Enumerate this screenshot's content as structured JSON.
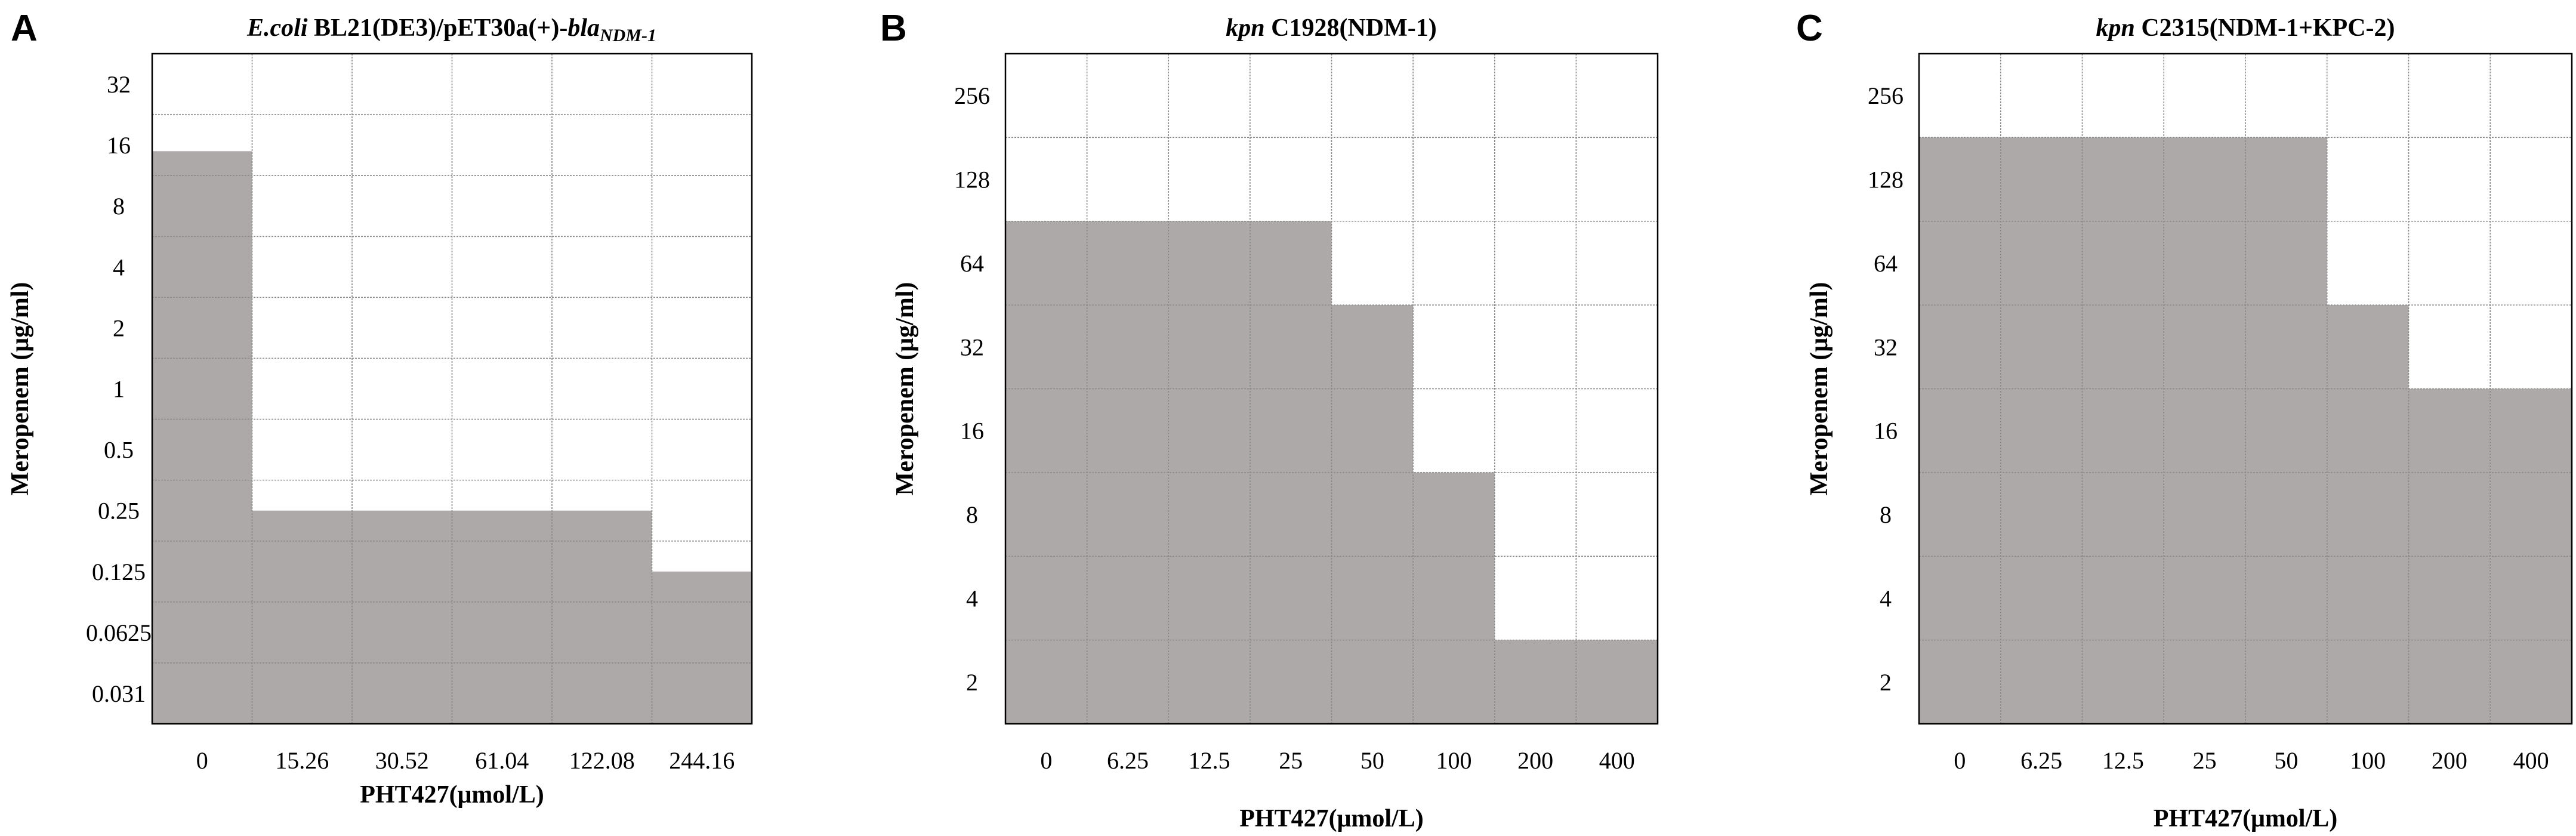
{
  "chart_data": [
    {
      "type": "heatmap",
      "panel": "A",
      "title_parts": [
        {
          "text": "E.coli",
          "style": "italic"
        },
        {
          "text": " BL21(DE3)/pET30a(+)-",
          "style": "normal"
        },
        {
          "text": "bla",
          "style": "italic"
        },
        {
          "text": "NDM-1",
          "style": "sub"
        }
      ],
      "xlabel": "PHT427(μmol/L)",
      "ylabel": "Meropenem (μg/ml)",
      "x_categories": [
        "0",
        "15.26",
        "30.52",
        "61.04",
        "122.08",
        "244.16"
      ],
      "y_categories": [
        "0.031",
        "0.0625",
        "0.125",
        "0.25",
        "0.5",
        "1",
        "2",
        "4",
        "8",
        "16",
        "32"
      ],
      "shaded_rows_per_column": [
        9.4,
        3.5,
        3.5,
        3.5,
        3.5,
        2.5
      ],
      "values_meaning": "number of meropenem rows (from bottom) showing growth (shaded)"
    },
    {
      "type": "heatmap",
      "panel": "B",
      "title_parts": [
        {
          "text": "kpn",
          "style": "italic"
        },
        {
          "text": " C1928(NDM-1)",
          "style": "normal"
        }
      ],
      "xlabel": "PHT427(μmol/L)",
      "ylabel": "Meropenem (μg/ml)",
      "x_categories": [
        "0",
        "6.25",
        "12.5",
        "25",
        "50",
        "100",
        "200",
        "400"
      ],
      "y_categories": [
        "2",
        "4",
        "8",
        "16",
        "32",
        "64",
        "128",
        "256"
      ],
      "shaded_rows_per_column": [
        6.0,
        6.0,
        6.0,
        6.0,
        5.0,
        3.0,
        1.0,
        1.0
      ],
      "values_meaning": "number of meropenem rows (from bottom) showing growth (shaded)"
    },
    {
      "type": "heatmap",
      "panel": "C",
      "title_parts": [
        {
          "text": "kpn",
          "style": "italic"
        },
        {
          "text": " C2315(NDM-1+KPC-2)",
          "style": "normal"
        }
      ],
      "xlabel": "PHT427(μmol/L)",
      "ylabel": "Meropenem (μg/ml)",
      "x_categories": [
        "0",
        "6.25",
        "12.5",
        "25",
        "50",
        "100",
        "200",
        "400"
      ],
      "y_categories": [
        "2",
        "4",
        "8",
        "16",
        "32",
        "64",
        "128",
        "256"
      ],
      "shaded_rows_per_column": [
        7.0,
        7.0,
        7.0,
        7.0,
        7.0,
        5.0,
        4.0,
        4.0
      ],
      "values_meaning": "number of meropenem rows (from bottom) showing growth (shaded)"
    }
  ]
}
